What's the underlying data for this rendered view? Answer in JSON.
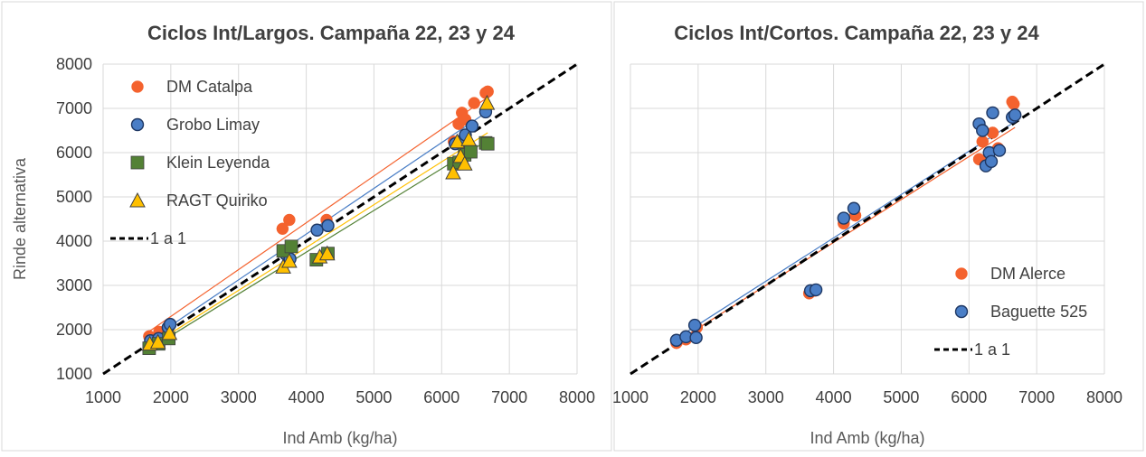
{
  "colors": {
    "grid": "#d9d9d9",
    "frame": "#d9d9d9",
    "one_to_one": "#000000",
    "DM Catalpa": "#f4622e",
    "Grobo Limay": "#4a7ec6",
    "Klein Leyenda": "#538135",
    "RAGT Quiriko": "#ffc000",
    "DM Alerce": "#f4622e",
    "Baguette 525": "#4a7ec6"
  },
  "chart_data": [
    {
      "type": "scatter",
      "title": "Ciclos Int/Largos. Campaña 22, 23 y 24",
      "xlabel": "Ind Amb (kg/ha)",
      "ylabel": "Rinde alternativa",
      "xlim": [
        1000,
        8000
      ],
      "ylim": [
        1000,
        8000
      ],
      "x_ticks": [
        "1000",
        "2000",
        "3000",
        "4000",
        "5000",
        "6000",
        "7000",
        "8000"
      ],
      "y_ticks": [
        "1000",
        "2000",
        "3000",
        "4000",
        "5000",
        "6000",
        "7000",
        "8000"
      ],
      "grid": true,
      "legend_position": "top-left",
      "series": [
        {
          "name": "DM Catalpa",
          "marker": "circle",
          "x": [
            1680,
            1830,
            1950,
            1980,
            3650,
            3750,
            4300,
            6180,
            6250,
            6300,
            6350,
            6480,
            6650,
            6680
          ],
          "y": [
            1850,
            1950,
            2000,
            2100,
            4280,
            4480,
            4480,
            6250,
            6650,
            6900,
            6750,
            7120,
            7350,
            7380
          ],
          "trend": {
            "x1": 1680,
            "y1": 1960,
            "x2": 6680,
            "y2": 7250
          }
        },
        {
          "name": "Grobo Limay",
          "marker": "circle",
          "x": [
            1700,
            1820,
            1960,
            1990,
            3700,
            3760,
            4160,
            4320,
            6200,
            6280,
            6350,
            6450,
            6650
          ],
          "y": [
            1750,
            1800,
            2050,
            2120,
            3700,
            3600,
            4250,
            4350,
            6200,
            6250,
            6400,
            6600,
            6920
          ],
          "trend": {
            "x1": 1680,
            "y1": 1760,
            "x2": 6680,
            "y2": 6930
          }
        },
        {
          "name": "Klein Leyenda",
          "marker": "square",
          "x": [
            1680,
            1820,
            1970,
            3660,
            3780,
            4150,
            4320,
            6180,
            6260,
            6340,
            6430,
            6650,
            6680
          ],
          "y": [
            1580,
            1680,
            1800,
            3780,
            3880,
            3580,
            3720,
            5750,
            5780,
            5950,
            6020,
            6220,
            6200
          ],
          "trend": {
            "x1": 1680,
            "y1": 1560,
            "x2": 6680,
            "y2": 6280
          }
        },
        {
          "name": "RAGT Quiriko",
          "marker": "triangle",
          "x": [
            1690,
            1810,
            1980,
            3660,
            3750,
            4200,
            4310,
            6170,
            6230,
            6280,
            6340,
            6400,
            6670
          ],
          "y": [
            1680,
            1720,
            1920,
            3420,
            3550,
            3650,
            3720,
            5550,
            6250,
            5920,
            5750,
            6300,
            7120
          ],
          "trend": {
            "x1": 1680,
            "y1": 1610,
            "x2": 6680,
            "y2": 6450
          }
        }
      ],
      "reference_line": {
        "name": "1 a 1",
        "x": [
          1000,
          8000
        ],
        "y": [
          1000,
          8000
        ]
      }
    },
    {
      "type": "scatter",
      "title": "Ciclos Int/Cortos. Campaña 22, 23 y 24",
      "xlabel": "Ind Amb (kg/ha)",
      "ylabel": "",
      "xlim": [
        1000,
        8000
      ],
      "ylim": [
        1000,
        8000
      ],
      "x_ticks": [
        "1000",
        "2000",
        "3000",
        "4000",
        "5000",
        "6000",
        "7000",
        "8000"
      ],
      "grid": true,
      "legend_position": "bottom-right",
      "series": [
        {
          "name": "DM Alerce",
          "marker": "circle",
          "x": [
            1680,
            1820,
            1960,
            1980,
            3640,
            3720,
            4150,
            4320,
            6150,
            6200,
            6250,
            6350,
            6430,
            6640,
            6660
          ],
          "y": [
            1700,
            1780,
            1850,
            2050,
            2820,
            2880,
            4400,
            4580,
            5850,
            6250,
            5800,
            6450,
            6100,
            7150,
            7100
          ],
          "trend": {
            "x1": 1680,
            "y1": 1720,
            "x2": 6680,
            "y2": 6570
          }
        },
        {
          "name": "Baguette 525",
          "marker": "circle",
          "x": [
            1680,
            1820,
            1950,
            1970,
            3660,
            3740,
            4150,
            4300,
            6150,
            6200,
            6250,
            6300,
            6330,
            6350,
            6450,
            6640,
            6680
          ],
          "y": [
            1760,
            1840,
            2100,
            1820,
            2880,
            2900,
            4520,
            4740,
            6650,
            6500,
            5700,
            6000,
            5800,
            6900,
            6050,
            6800,
            6850
          ],
          "trend": {
            "x1": 1680,
            "y1": 1800,
            "x2": 6680,
            "y2": 6700
          }
        }
      ],
      "reference_line": {
        "name": "1 a 1",
        "x": [
          1000,
          8000
        ],
        "y": [
          1000,
          8000
        ]
      }
    }
  ]
}
